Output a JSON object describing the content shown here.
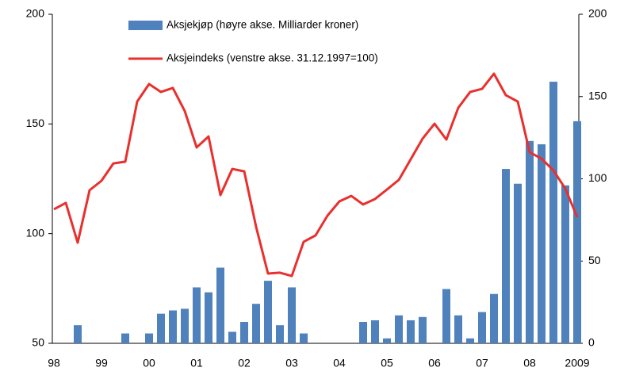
{
  "chart_data": {
    "type": "bar_line",
    "categories": [
      "98",
      null,
      null,
      null,
      "99",
      null,
      null,
      null,
      "00",
      null,
      null,
      null,
      "01",
      null,
      null,
      null,
      "02",
      null,
      null,
      null,
      "03",
      null,
      null,
      null,
      "04",
      null,
      null,
      null,
      "05",
      null,
      null,
      null,
      "06",
      null,
      null,
      null,
      "07",
      null,
      null,
      null,
      "08",
      null,
      null,
      null,
      "2009"
    ],
    "series": [
      {
        "name": "Aksjekjøp (høyre akse. Milliarder kroner)",
        "type": "bar",
        "axis": "y2",
        "color": "#4f81bd",
        "values": [
          0,
          0,
          11,
          0,
          0,
          0,
          6,
          0,
          6,
          18,
          20,
          21,
          34,
          31,
          46,
          7,
          13,
          24,
          38,
          11,
          34,
          6,
          0,
          0,
          0,
          0,
          13,
          14,
          3,
          17,
          14,
          16,
          0,
          33,
          17,
          3,
          19,
          30,
          106,
          97,
          123,
          121,
          159,
          96,
          135
        ]
      },
      {
        "name": "Aksjeindeks (venstre akse. 31.12.1997=100)",
        "type": "line",
        "color": "#e8302e",
        "values": [
          111.1,
          114,
          95.9,
          119.8,
          124.1,
          132,
          132.8,
          160.2,
          168.2,
          164.6,
          166.4,
          155.9,
          139.3,
          144.3,
          117.6,
          129.5,
          128.4,
          103.1,
          81.8,
          82.2,
          80.7,
          96.3,
          99.2,
          108.2,
          114.7,
          117.2,
          113.3,
          115.8,
          120.1,
          124.5,
          133.9,
          143.3,
          150.1,
          142.9,
          157.4,
          164.6,
          166,
          172.9,
          163.1,
          160.2,
          137.1,
          134.2,
          128.8,
          120.5,
          107.5
        ]
      }
    ],
    "ylim": [
      50,
      200
    ],
    "yticks": [
      50,
      100,
      150,
      200
    ],
    "y2lim": [
      0,
      200
    ],
    "y2ticks": [
      0,
      50,
      100,
      150,
      200
    ]
  }
}
